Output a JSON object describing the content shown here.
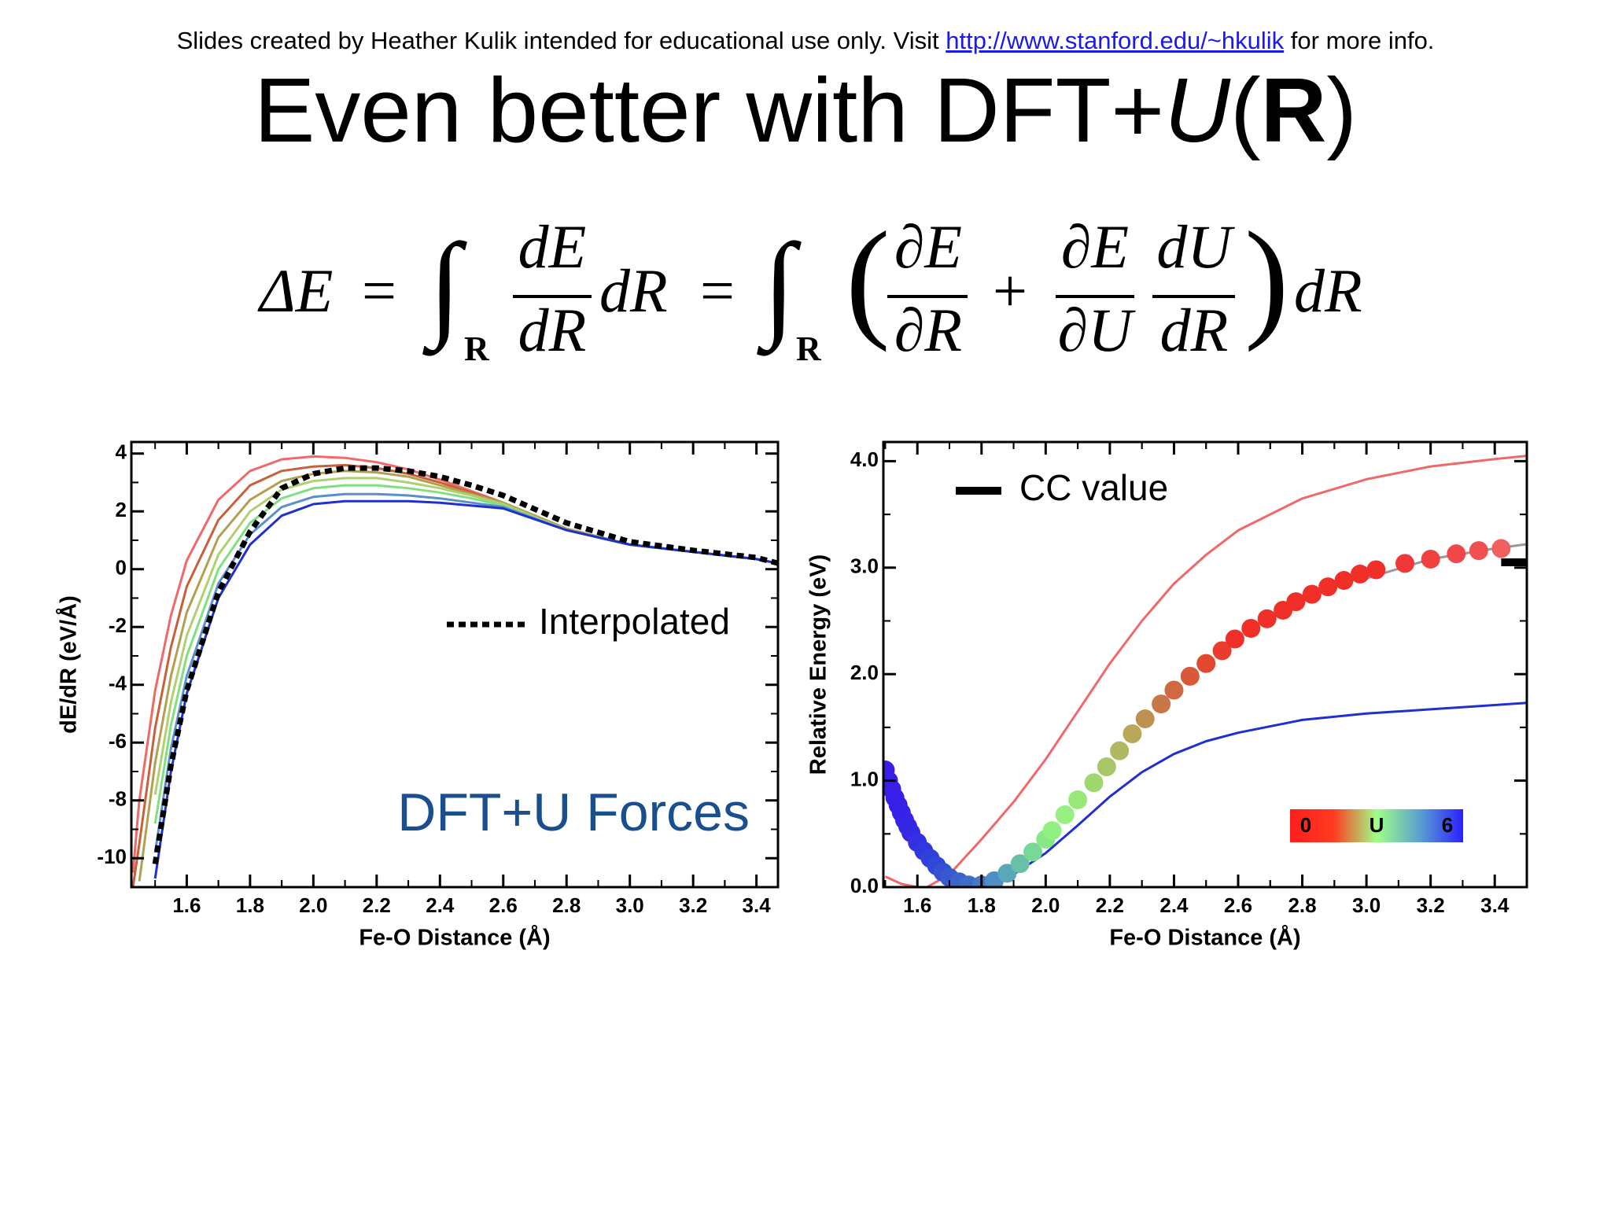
{
  "header": {
    "before": "Slides created by Heather Kulik intended for educational use only. Visit",
    "link": "http://www.stanford.edu/~hkulik",
    "after": "for more info."
  },
  "title": {
    "main": "Even better with DFT+",
    "italic": "U",
    "open": "(",
    "bold": "R",
    "close": ")"
  },
  "equation": {
    "lhs": "ΔE",
    "eq1": "=",
    "int1": "∫",
    "sub1": "R",
    "f1n": "dE",
    "f1d": "dR",
    "d1": "dR",
    "eq2": "=",
    "int2": "∫",
    "sub2": "R",
    "lp": "(",
    "f2n": "∂E",
    "f2d": "∂R",
    "plus": "+",
    "f3n": "∂E",
    "f3d": "∂U",
    "f4n": "dU",
    "f4d": "dR",
    "rp": ")",
    "d2": "dR"
  },
  "chart_data": [
    {
      "type": "line",
      "xlabel": "Fe-O Distance (Å)",
      "ylabel": "dE/dR (eV/Å)",
      "annotation": "DFT+U Forces",
      "xlim": [
        1.425,
        3.468
      ],
      "ylim": [
        -11,
        4.4
      ],
      "xticks": [
        1.6,
        1.8,
        {
          "value": 2,
          "label": "2.0"
        },
        2.2,
        2.4,
        2.6,
        2.8,
        {
          "value": 3,
          "label": "3.0"
        },
        3.2,
        3.4
      ],
      "yticks": [
        4,
        2,
        0,
        -2,
        -4,
        -6,
        -8,
        -10
      ],
      "x": [
        1.43,
        1.45,
        1.5,
        1.55,
        1.6,
        1.7,
        1.8,
        1.9,
        2.0,
        2.1,
        2.2,
        2.3,
        2.4,
        2.5,
        2.6,
        2.8,
        3.0,
        3.2,
        3.4,
        3.47
      ],
      "series": [
        {
          "color": "#f06868",
          "values": [
            -10.5,
            -8,
            -4.2,
            -1.6,
            0.3,
            2.4,
            3.4,
            3.8,
            3.9,
            3.85,
            3.7,
            3.45,
            3.1,
            2.7,
            2.3,
            1.4,
            0.85,
            0.6,
            0.35,
            0.2
          ]
        },
        {
          "color": "#c8603a",
          "values": [
            -11,
            -9.5,
            -5.5,
            -2.7,
            -0.6,
            1.7,
            2.9,
            3.4,
            3.55,
            3.6,
            3.5,
            3.3,
            3.0,
            2.65,
            2.3,
            1.4,
            0.85,
            0.6,
            0.35,
            0.2
          ]
        },
        {
          "color": "#b0a050",
          "values": [
            null,
            -10.8,
            -6.7,
            -3.7,
            -1.5,
            1.1,
            2.4,
            3.05,
            3.3,
            3.4,
            3.35,
            3.2,
            2.9,
            2.6,
            2.3,
            1.4,
            0.85,
            0.6,
            0.35,
            0.2
          ]
        },
        {
          "color": "#b0d070",
          "values": [
            null,
            null,
            -7.8,
            -4.6,
            -2.3,
            0.5,
            2.0,
            2.75,
            3.05,
            3.15,
            3.15,
            3.0,
            2.8,
            2.55,
            2.25,
            1.35,
            0.85,
            0.6,
            0.35,
            0.2
          ]
        },
        {
          "color": "#80e080",
          "values": [
            null,
            null,
            -8.8,
            -5.4,
            -3.0,
            0,
            1.6,
            2.45,
            2.8,
            2.9,
            2.9,
            2.8,
            2.65,
            2.45,
            2.2,
            1.35,
            0.85,
            0.6,
            0.35,
            0.2
          ]
        },
        {
          "color": "#5a90c8",
          "values": [
            null,
            null,
            -9.8,
            -6.2,
            -3.7,
            -0.5,
            1.2,
            2.15,
            2.5,
            2.6,
            2.6,
            2.55,
            2.45,
            2.3,
            2.15,
            1.35,
            0.85,
            0.6,
            0.35,
            0.2
          ]
        },
        {
          "color": "#2030d0",
          "values": [
            null,
            null,
            -10.7,
            -7.0,
            -4.3,
            -1.0,
            0.85,
            1.85,
            2.25,
            2.35,
            2.35,
            2.35,
            2.3,
            2.2,
            2.1,
            1.35,
            0.85,
            0.6,
            0.35,
            0.2
          ]
        },
        {
          "name": "Interpolated",
          "color": "#000000",
          "style": "dotted",
          "values": [
            null,
            null,
            -10.2,
            -6.8,
            -4.2,
            -0.8,
            1.3,
            2.8,
            3.3,
            3.5,
            3.5,
            3.4,
            3.2,
            2.9,
            2.55,
            1.6,
            0.95,
            0.65,
            0.4,
            0.2
          ]
        }
      ]
    },
    {
      "type": "line",
      "xlabel": "Fe-O Distance (Å)",
      "ylabel": "Relative Energy (eV)",
      "xlim": [
        1.494,
        3.5
      ],
      "ylim": [
        0,
        4.18
      ],
      "xticks": [
        1.6,
        1.8,
        {
          "value": 2,
          "label": "2.0"
        },
        2.2,
        2.4,
        2.6,
        2.8,
        {
          "value": 3,
          "label": "3.0"
        },
        3.2,
        3.4
      ],
      "yticks": [
        {
          "value": 0,
          "label": "0.0"
        },
        {
          "value": 1,
          "label": "1.0"
        },
        {
          "value": 2,
          "label": "2.0"
        },
        {
          "value": 3,
          "label": "3.0"
        },
        {
          "value": 4,
          "label": "4.0"
        }
      ],
      "colorbar": {
        "label": "U",
        "lim": [
          0,
          6
        ],
        "ticks": [
          0,
          6
        ],
        "stops": [
          "#ff1e1e",
          "#ff3a20",
          "#a0ff88",
          "#5aa0d0",
          "#2a20ff"
        ]
      },
      "series": [
        {
          "color": "#f06868",
          "x": [
            1.5,
            1.55,
            1.6,
            1.63,
            1.7,
            1.8,
            1.9,
            2.0,
            2.1,
            2.2,
            2.3,
            2.4,
            2.5,
            2.6,
            2.8,
            3.0,
            3.2,
            3.4,
            3.5
          ],
          "values": [
            0.1,
            0.03,
            0.0,
            0.0,
            0.12,
            0.45,
            0.8,
            1.2,
            1.65,
            2.1,
            2.5,
            2.85,
            3.12,
            3.35,
            3.65,
            3.83,
            3.95,
            4.02,
            4.05
          ]
        },
        {
          "color": "#2030d0",
          "x": [
            1.76,
            1.8,
            1.9,
            2.0,
            2.1,
            2.2,
            2.3,
            2.4,
            2.5,
            2.6,
            2.8,
            3.0,
            3.2,
            3.4,
            3.5
          ],
          "values": [
            0.0,
            0.03,
            0.12,
            0.32,
            0.58,
            0.85,
            1.08,
            1.25,
            1.37,
            1.45,
            1.57,
            1.63,
            1.67,
            1.71,
            1.73
          ]
        },
        {
          "color": "#999999",
          "x": [
            3.0,
            3.2,
            3.4,
            3.5
          ],
          "values": [
            2.9,
            3.08,
            3.18,
            3.22
          ]
        },
        {
          "style": "markers",
          "x": [
            1.5,
            1.51,
            1.52,
            1.53,
            1.54,
            1.55,
            1.56,
            1.57,
            1.58,
            1.6,
            1.62,
            1.64,
            1.66,
            1.68,
            1.7,
            1.73,
            1.76,
            1.8,
            1.84,
            1.88,
            1.92,
            1.96,
            2.0,
            2.02,
            2.06,
            2.1,
            2.15,
            2.19,
            2.23,
            2.27,
            2.31,
            2.36,
            2.4,
            2.45,
            2.5,
            2.55,
            2.59,
            2.64,
            2.69,
            2.74,
            2.78,
            2.83,
            2.88,
            2.93,
            2.98,
            3.03,
            3.12,
            3.2,
            3.28,
            3.35,
            3.42
          ],
          "values": [
            1.1,
            1.0,
            0.92,
            0.84,
            0.77,
            0.7,
            0.63,
            0.57,
            0.51,
            0.42,
            0.34,
            0.27,
            0.2,
            0.14,
            0.09,
            0.05,
            0.02,
            0.02,
            0.06,
            0.13,
            0.22,
            0.33,
            0.45,
            0.53,
            0.68,
            0.82,
            0.98,
            1.13,
            1.28,
            1.44,
            1.58,
            1.72,
            1.85,
            1.98,
            2.1,
            2.22,
            2.33,
            2.43,
            2.52,
            2.6,
            2.68,
            2.75,
            2.82,
            2.88,
            2.94,
            2.98,
            3.04,
            3.08,
            3.13,
            3.16,
            3.18
          ],
          "colors": [
            "#3a1ee8",
            "#3a1ee8",
            "#3a1ee8",
            "#3820e8",
            "#3820e8",
            "#3622e8",
            "#3624e6",
            "#3426e6",
            "#3428e4",
            "#3230e2",
            "#3038e0",
            "#3040dc",
            "#3048d8",
            "#3450d4",
            "#3858d0",
            "#3c62cc",
            "#406cc8",
            "#4878c4",
            "#4e8ec4",
            "#58a8b8",
            "#68c0a8",
            "#78d898",
            "#88e888",
            "#90f080",
            "#98f080",
            "#98e878",
            "#a0d870",
            "#a8c868",
            "#b0b860",
            "#b8a858",
            "#c09050",
            "#c87848",
            "#d06840",
            "#d85838",
            "#e04830",
            "#e83c2c",
            "#f03028",
            "#f03028",
            "#f03028",
            "#f03028",
            "#f03028",
            "#f03028",
            "#f03028",
            "#f03028",
            "#f03028",
            "#f03028",
            "#f03838",
            "#f04040",
            "#f04848",
            "#f05050",
            "#f06060"
          ]
        },
        {
          "name": "CC value",
          "color": "#000000",
          "style": "thick",
          "x": [
            3.42,
            3.5
          ],
          "values": [
            3.05,
            3.05
          ]
        }
      ]
    }
  ]
}
